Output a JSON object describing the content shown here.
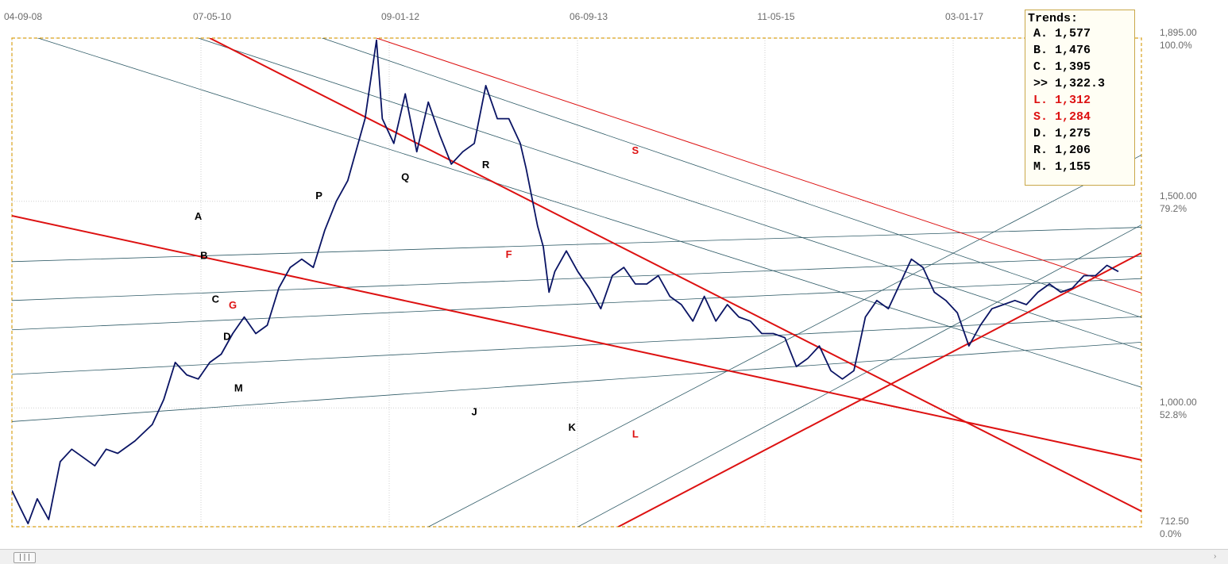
{
  "chart_data": {
    "type": "line",
    "title": "",
    "x_ticks": [
      "04-09-08",
      "07-05-10",
      "09-01-12",
      "06-09-13",
      "11-05-15",
      "03-01-17"
    ],
    "y_axis_right": [
      {
        "value": "1,895.00",
        "pct": "100.0%"
      },
      {
        "value": "1,500.00",
        "pct": "79.2%"
      },
      {
        "value": "1,000.00",
        "pct": "52.8%"
      },
      {
        "value": "712.50",
        "pct": "0.0%"
      }
    ],
    "ylim": [
      712.5,
      1895
    ],
    "xlim": [
      2008.68,
      2018.5
    ],
    "grid": true,
    "series": [
      {
        "color": "#0a1464",
        "points": [
          [
            2008.68,
            800
          ],
          [
            2008.75,
            760
          ],
          [
            2008.82,
            720
          ],
          [
            2008.9,
            780
          ],
          [
            2009.0,
            730
          ],
          [
            2009.1,
            870
          ],
          [
            2009.2,
            900
          ],
          [
            2009.3,
            880
          ],
          [
            2009.4,
            860
          ],
          [
            2009.5,
            900
          ],
          [
            2009.6,
            890
          ],
          [
            2009.75,
            920
          ],
          [
            2009.9,
            960
          ],
          [
            2010.0,
            1020
          ],
          [
            2010.1,
            1110
          ],
          [
            2010.2,
            1080
          ],
          [
            2010.3,
            1070
          ],
          [
            2010.4,
            1110
          ],
          [
            2010.5,
            1130
          ],
          [
            2010.6,
            1180
          ],
          [
            2010.7,
            1220
          ],
          [
            2010.8,
            1180
          ],
          [
            2010.9,
            1200
          ],
          [
            2011.0,
            1290
          ],
          [
            2011.1,
            1340
          ],
          [
            2011.2,
            1360
          ],
          [
            2011.3,
            1340
          ],
          [
            2011.4,
            1430
          ],
          [
            2011.5,
            1500
          ],
          [
            2011.6,
            1550
          ],
          [
            2011.75,
            1700
          ],
          [
            2011.85,
            1890
          ],
          [
            2011.9,
            1700
          ],
          [
            2012.0,
            1640
          ],
          [
            2012.1,
            1760
          ],
          [
            2012.2,
            1620
          ],
          [
            2012.3,
            1740
          ],
          [
            2012.4,
            1660
          ],
          [
            2012.5,
            1590
          ],
          [
            2012.6,
            1620
          ],
          [
            2012.7,
            1640
          ],
          [
            2012.8,
            1780
          ],
          [
            2012.9,
            1700
          ],
          [
            2013.0,
            1700
          ],
          [
            2013.1,
            1640
          ],
          [
            2013.15,
            1580
          ],
          [
            2013.25,
            1440
          ],
          [
            2013.3,
            1390
          ],
          [
            2013.35,
            1280
          ],
          [
            2013.4,
            1330
          ],
          [
            2013.5,
            1380
          ],
          [
            2013.6,
            1330
          ],
          [
            2013.7,
            1290
          ],
          [
            2013.8,
            1240
          ],
          [
            2013.9,
            1320
          ],
          [
            2014.0,
            1340
          ],
          [
            2014.1,
            1300
          ],
          [
            2014.2,
            1300
          ],
          [
            2014.3,
            1320
          ],
          [
            2014.4,
            1270
          ],
          [
            2014.5,
            1250
          ],
          [
            2014.6,
            1210
          ],
          [
            2014.7,
            1270
          ],
          [
            2014.8,
            1210
          ],
          [
            2014.9,
            1250
          ],
          [
            2015.0,
            1220
          ],
          [
            2015.1,
            1210
          ],
          [
            2015.2,
            1180
          ],
          [
            2015.3,
            1180
          ],
          [
            2015.4,
            1170
          ],
          [
            2015.5,
            1100
          ],
          [
            2015.6,
            1120
          ],
          [
            2015.7,
            1150
          ],
          [
            2015.8,
            1090
          ],
          [
            2015.9,
            1070
          ],
          [
            2016.0,
            1090
          ],
          [
            2016.1,
            1220
          ],
          [
            2016.2,
            1260
          ],
          [
            2016.3,
            1240
          ],
          [
            2016.4,
            1300
          ],
          [
            2016.5,
            1360
          ],
          [
            2016.6,
            1340
          ],
          [
            2016.7,
            1280
          ],
          [
            2016.8,
            1260
          ],
          [
            2016.9,
            1230
          ],
          [
            2017.0,
            1150
          ],
          [
            2017.1,
            1200
          ],
          [
            2017.2,
            1240
          ],
          [
            2017.3,
            1250
          ],
          [
            2017.4,
            1260
          ],
          [
            2017.5,
            1250
          ],
          [
            2017.6,
            1280
          ],
          [
            2017.7,
            1300
          ],
          [
            2017.8,
            1280
          ],
          [
            2017.9,
            1290
          ],
          [
            2018.0,
            1320
          ],
          [
            2018.1,
            1320
          ],
          [
            2018.2,
            1345
          ],
          [
            2018.3,
            1330
          ]
        ]
      }
    ],
    "trend_lines": [
      {
        "label": "A",
        "color": "#2e5a66",
        "p1": [
          2008.68,
          1354
        ],
        "p2": [
          2018.5,
          1437
        ]
      },
      {
        "label": "B",
        "color": "#2e5a66",
        "p1": [
          2008.68,
          1260
        ],
        "p2": [
          2018.5,
          1367
        ]
      },
      {
        "label": "C",
        "color": "#2e5a66",
        "p1": [
          2008.68,
          1189
        ],
        "p2": [
          2018.5,
          1313
        ]
      },
      {
        "label": "D",
        "color": "#2e5a66",
        "p1": [
          2008.68,
          1081
        ],
        "p2": [
          2018.5,
          1221
        ]
      },
      {
        "label": "M",
        "color": "#2e5a66",
        "p1": [
          2008.68,
          967
        ],
        "p2": [
          2018.5,
          1159
        ]
      },
      {
        "label": "P",
        "color": "#2e5a66",
        "p1": [
          2008.68,
          1915
        ],
        "p2": [
          2018.5,
          1050
        ]
      },
      {
        "label": "Q",
        "color": "#2e5a66",
        "p1": [
          2010.3,
          1895
        ],
        "p2": [
          2018.5,
          1141
        ]
      },
      {
        "label": "R",
        "color": "#2e5a66",
        "p1": [
          2011.0,
          1931
        ],
        "p2": [
          2018.5,
          1219
        ]
      },
      {
        "label": "J",
        "color": "#2e5a66",
        "p1": [
          2012.3,
          712
        ],
        "p2": [
          2018.5,
          1612
        ]
      },
      {
        "label": "K",
        "color": "#2e5a66",
        "p1": [
          2013.6,
          712
        ],
        "p2": [
          2018.5,
          1443
        ]
      },
      {
        "label": "S",
        "color": "#dd1111",
        "p1": [
          2011.85,
          1895
        ],
        "p2": [
          2018.5,
          1278
        ]
      },
      {
        "label": "F",
        "color": "#dd1111",
        "p1": [
          2010.4,
          1895
        ],
        "p2": [
          2018.5,
          750
        ]
      },
      {
        "label": "G",
        "color": "#dd1111",
        "p1": [
          2008.68,
          1465
        ],
        "p2": [
          2018.5,
          874
        ]
      },
      {
        "label": "L",
        "color": "#dd1111",
        "p1": [
          2013.95,
          712
        ],
        "p2": [
          2018.5,
          1375
        ]
      }
    ],
    "labels": [
      {
        "text": "A",
        "color": "#000000",
        "x": 2010.3,
        "y": 1455
      },
      {
        "text": "B",
        "color": "#000000",
        "x": 2010.35,
        "y": 1360
      },
      {
        "text": "C",
        "color": "#000000",
        "x": 2010.45,
        "y": 1255
      },
      {
        "text": "D",
        "color": "#000000",
        "x": 2010.55,
        "y": 1165
      },
      {
        "text": "M",
        "color": "#000000",
        "x": 2010.65,
        "y": 1040
      },
      {
        "text": "P",
        "color": "#000000",
        "x": 2011.35,
        "y": 1505
      },
      {
        "text": "Q",
        "color": "#000000",
        "x": 2012.1,
        "y": 1550
      },
      {
        "text": "R",
        "color": "#000000",
        "x": 2012.8,
        "y": 1580
      },
      {
        "text": "S",
        "color": "#dd1111",
        "x": 2014.1,
        "y": 1615
      },
      {
        "text": "F",
        "color": "#dd1111",
        "x": 2013.0,
        "y": 1363
      },
      {
        "text": "G",
        "color": "#dd1111",
        "x": 2010.6,
        "y": 1240
      },
      {
        "text": "J",
        "color": "#000000",
        "x": 2012.7,
        "y": 982
      },
      {
        "text": "K",
        "color": "#000000",
        "x": 2013.55,
        "y": 945
      },
      {
        "text": "L",
        "color": "#dd1111",
        "x": 2014.1,
        "y": 928
      }
    ]
  },
  "trends_panel": {
    "title": "Trends:",
    "rows": [
      {
        "text": "A. 1,577",
        "color": "#000000"
      },
      {
        "text": "B. 1,476",
        "color": "#000000"
      },
      {
        "text": "C. 1,395",
        "color": "#000000"
      },
      {
        "text": ">> 1,322.3",
        "color": "#000000"
      },
      {
        "text": "L. 1,312",
        "color": "#dd1111"
      },
      {
        "text": "S. 1,284",
        "color": "#dd1111"
      },
      {
        "text": "D. 1,275",
        "color": "#000000"
      },
      {
        "text": "R. 1,206",
        "color": "#000000"
      },
      {
        "text": "M. 1,155",
        "color": "#000000"
      }
    ]
  },
  "scrollbar": {
    "thumb_glyph": "|||"
  }
}
